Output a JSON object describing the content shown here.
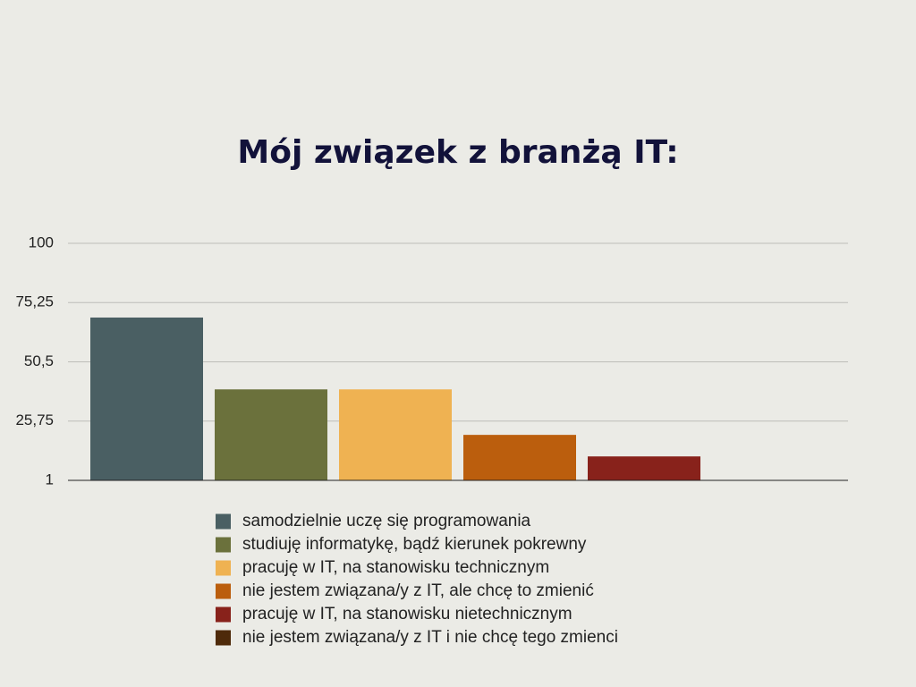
{
  "chart_data": {
    "type": "bar",
    "title": "Mój związek z branżą IT:",
    "categories": [
      "samodzielnie uczę się programowania",
      "studiuję informatykę, bądź kierunek pokrewny",
      "pracuję w IT, na stanowisku technicznym",
      "nie jestem związana/y z IT, ale chcę to zmienić",
      "pracuję w IT, na stanowisku nietechnicznym",
      "nie jestem związana/y z IT i nie chcę tego zmienci"
    ],
    "values": [
      69,
      39,
      39,
      20,
      11,
      1
    ],
    "colors": [
      "#4a5f63",
      "#6b713c",
      "#efb252",
      "#bb5e0d",
      "#88221b",
      "#4e2a0a"
    ],
    "ylim": [
      1,
      100
    ],
    "yticks": [
      1,
      {
        "value": 25.75,
        "label": "25,75"
      },
      {
        "value": 50.5,
        "label": "50,5"
      },
      {
        "value": 75.25,
        "label": "75,25"
      },
      100
    ],
    "grid": true,
    "legend": "bottom"
  }
}
